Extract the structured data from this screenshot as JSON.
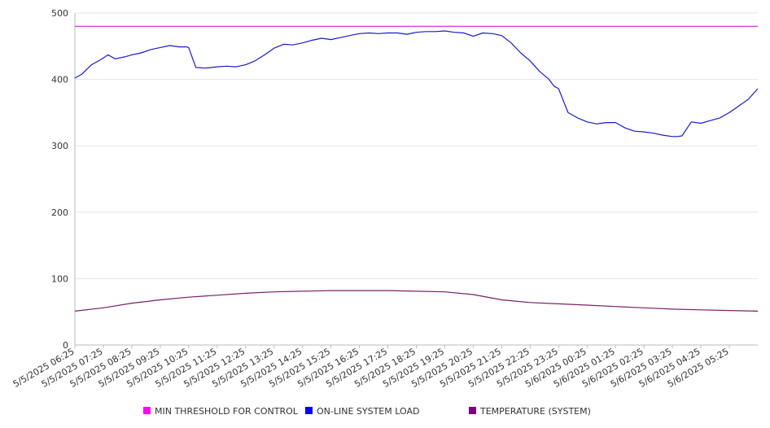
{
  "chart_data": {
    "type": "line",
    "title": "",
    "xlabel": "",
    "ylabel": "",
    "ylim": [
      0,
      500
    ],
    "yticks": [
      0,
      100,
      200,
      300,
      400,
      500
    ],
    "grid": "horizontal",
    "legend_position": "bottom",
    "x_tick_labels": [
      "5/5/2025 06:25",
      "5/5/2025 07:25",
      "5/5/2025 08:25",
      "5/5/2025 09:25",
      "5/5/2025 10:25",
      "5/5/2025 11:25",
      "5/5/2025 12:25",
      "5/5/2025 13:25",
      "5/5/2025 14:25",
      "5/5/2025 15:25",
      "5/5/2025 16:25",
      "5/5/2025 17:25",
      "5/5/2025 18:25",
      "5/5/2025 19:25",
      "5/5/2025 20:25",
      "5/5/2025 21:25",
      "5/5/2025 22:25",
      "5/5/2025 23:25",
      "5/6/2025 00:25",
      "5/6/2025 01:25",
      "5/6/2025 02:25",
      "5/6/2025 03:25",
      "5/6/2025 04:25",
      "5/6/2025 05:25"
    ],
    "x_range": [
      "5/5/2025 06:25",
      "5/6/2025 06:25"
    ],
    "series": [
      {
        "name": "MIN THRESHOLD FOR CONTROL",
        "color": "#d61fd6",
        "marker": "#ff00ff",
        "x": [
          "5/5/2025 06:25",
          "5/6/2025 06:25"
        ],
        "values": [
          480,
          480
        ]
      },
      {
        "name": "ON-LINE SYSTEM LOAD",
        "color": "#1a1acc",
        "marker": "#0000ff",
        "x": [
          "5/5/2025 06:25",
          "5/5/2025 06:40",
          "5/5/2025 07:00",
          "5/5/2025 07:20",
          "5/5/2025 07:35",
          "5/5/2025 07:50",
          "5/5/2025 08:10",
          "5/5/2025 08:25",
          "5/5/2025 08:45",
          "5/5/2025 09:05",
          "5/5/2025 09:25",
          "5/5/2025 09:45",
          "5/5/2025 10:05",
          "5/5/2025 10:20",
          "5/5/2025 10:25",
          "5/5/2025 10:40",
          "5/5/2025 11:00",
          "5/5/2025 11:25",
          "5/5/2025 11:45",
          "5/5/2025 12:05",
          "5/5/2025 12:25",
          "5/5/2025 12:45",
          "5/5/2025 13:05",
          "5/5/2025 13:25",
          "5/5/2025 13:45",
          "5/5/2025 14:05",
          "5/5/2025 14:25",
          "5/5/2025 14:45",
          "5/5/2025 15:05",
          "5/5/2025 15:25",
          "5/5/2025 15:45",
          "5/5/2025 16:05",
          "5/5/2025 16:25",
          "5/5/2025 16:45",
          "5/5/2025 17:05",
          "5/5/2025 17:25",
          "5/5/2025 17:45",
          "5/5/2025 18:05",
          "5/5/2025 18:25",
          "5/5/2025 18:45",
          "5/5/2025 19:05",
          "5/5/2025 19:25",
          "5/5/2025 19:45",
          "5/5/2025 20:05",
          "5/5/2025 20:25",
          "5/5/2025 20:45",
          "5/5/2025 21:05",
          "5/5/2025 21:25",
          "5/5/2025 21:45",
          "5/5/2025 22:05",
          "5/5/2025 22:25",
          "5/5/2025 22:45",
          "5/5/2025 23:05",
          "5/5/2025 23:15",
          "5/5/2025 23:25",
          "5/5/2025 23:45",
          "5/6/2025 00:05",
          "5/6/2025 00:25",
          "5/6/2025 00:45",
          "5/6/2025 01:05",
          "5/6/2025 01:25",
          "5/6/2025 01:45",
          "5/6/2025 02:05",
          "5/6/2025 02:25",
          "5/6/2025 02:45",
          "5/6/2025 03:05",
          "5/6/2025 03:25",
          "5/6/2025 03:35",
          "5/6/2025 03:45",
          "5/6/2025 04:05",
          "5/6/2025 04:25",
          "5/6/2025 04:45",
          "5/6/2025 05:05",
          "5/6/2025 05:25",
          "5/6/2025 05:45",
          "5/6/2025 06:05",
          "5/6/2025 06:25"
        ],
        "values": [
          402,
          408,
          422,
          430,
          437,
          431,
          434,
          437,
          440,
          445,
          448,
          451,
          449,
          449,
          448,
          418,
          417,
          419,
          420,
          419,
          422,
          428,
          437,
          447,
          453,
          452,
          455,
          459,
          462,
          460,
          463,
          466,
          469,
          470,
          469,
          470,
          470,
          468,
          471,
          472,
          472,
          473,
          471,
          470,
          465,
          470,
          469,
          466,
          455,
          440,
          428,
          412,
          400,
          390,
          386,
          350,
          342,
          336,
          333,
          335,
          335,
          327,
          322,
          321,
          319,
          316,
          314,
          314,
          315,
          336,
          334,
          338,
          342,
          350,
          360,
          370,
          386
        ]
      },
      {
        "name": "TEMPERATURE (SYSTEM)",
        "color": "#7a1f6b",
        "marker": "#800080",
        "x": [
          "5/5/2025 06:25",
          "5/5/2025 07:25",
          "5/5/2025 08:25",
          "5/5/2025 09:25",
          "5/5/2025 10:25",
          "5/5/2025 11:25",
          "5/5/2025 12:25",
          "5/5/2025 13:25",
          "5/5/2025 14:25",
          "5/5/2025 15:25",
          "5/5/2025 16:25",
          "5/5/2025 17:25",
          "5/5/2025 18:25",
          "5/5/2025 19:25",
          "5/5/2025 20:25",
          "5/5/2025 21:25",
          "5/5/2025 22:25",
          "5/5/2025 23:25",
          "5/6/2025 00:25",
          "5/6/2025 01:25",
          "5/6/2025 02:25",
          "5/6/2025 03:25",
          "5/6/2025 04:25",
          "5/6/2025 05:25",
          "5/6/2025 06:25"
        ],
        "values": [
          51,
          56,
          63,
          68,
          72,
          75,
          78,
          80,
          81,
          82,
          82,
          82,
          81,
          80,
          76,
          68,
          64,
          62,
          60,
          58,
          56,
          54,
          53,
          52,
          51
        ]
      }
    ]
  }
}
